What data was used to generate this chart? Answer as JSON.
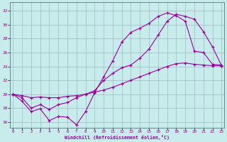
{
  "title": "",
  "xlabel": "Windchill (Refroidissement éolien,°C)",
  "bg_color": "#c8ecec",
  "line_color": "#990099",
  "grid_color": "#99aabb",
  "x_ticks": [
    0,
    1,
    2,
    3,
    4,
    5,
    6,
    7,
    8,
    9,
    10,
    11,
    12,
    13,
    14,
    15,
    16,
    17,
    18,
    19,
    20,
    21,
    22,
    23
  ],
  "y_ticks": [
    16,
    18,
    20,
    22,
    24,
    26,
    28,
    30,
    32
  ],
  "ylim": [
    15.2,
    33.2
  ],
  "xlim": [
    -0.3,
    23.3
  ],
  "line1_x": [
    0,
    1,
    2,
    3,
    4,
    5,
    6,
    7,
    8,
    9,
    10,
    11,
    12,
    13,
    14,
    15,
    16,
    17,
    18,
    19,
    20,
    21,
    22,
    23
  ],
  "line1_y": [
    20.0,
    19.0,
    17.5,
    17.9,
    16.2,
    16.8,
    16.7,
    15.6,
    17.5,
    20.2,
    22.5,
    24.8,
    27.5,
    28.9,
    29.5,
    30.2,
    31.2,
    31.7,
    31.3,
    30.5,
    26.2,
    26.0,
    24.3,
    24.2
  ],
  "line2_x": [
    0,
    1,
    2,
    3,
    4,
    5,
    6,
    7,
    8,
    9,
    10,
    11,
    12,
    13,
    14,
    15,
    16,
    17,
    18,
    19,
    20,
    21,
    22,
    23
  ],
  "line2_y": [
    20.0,
    19.8,
    19.5,
    19.6,
    19.5,
    19.5,
    19.7,
    19.8,
    20.0,
    20.3,
    20.6,
    21.0,
    21.5,
    22.0,
    22.5,
    23.0,
    23.5,
    24.0,
    24.4,
    24.5,
    24.3,
    24.2,
    24.1,
    24.1
  ],
  "line3_x": [
    0,
    1,
    2,
    3,
    4,
    5,
    6,
    7,
    8,
    9,
    10,
    11,
    12,
    13,
    14,
    15,
    16,
    17,
    18,
    19,
    20,
    21,
    22,
    23
  ],
  "line3_y": [
    20.0,
    19.5,
    18.0,
    18.5,
    17.8,
    18.5,
    18.8,
    19.5,
    20.0,
    20.5,
    22.0,
    23.0,
    23.8,
    24.2,
    25.2,
    26.5,
    28.5,
    30.5,
    31.5,
    31.2,
    30.8,
    29.0,
    26.8,
    24.1
  ]
}
